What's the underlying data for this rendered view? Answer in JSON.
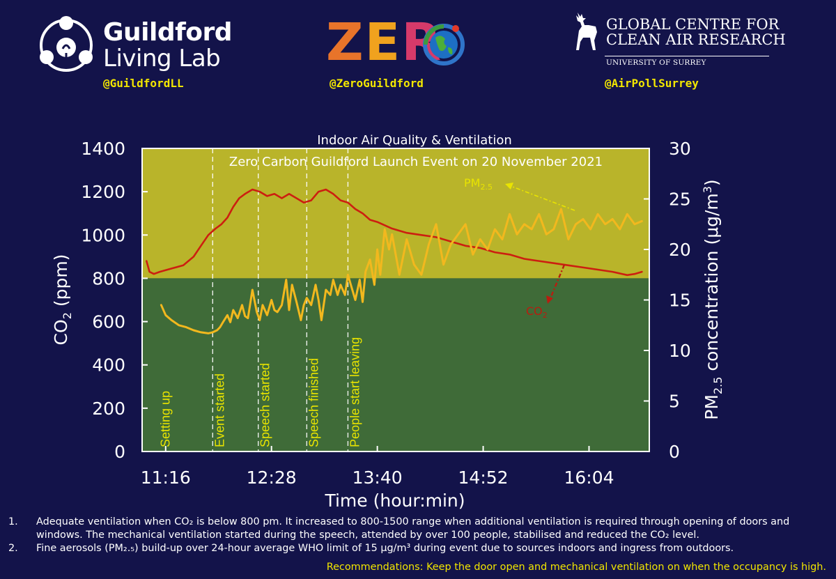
{
  "header": {
    "guildford": {
      "line1": "Guildford",
      "line2": "Living Lab",
      "handle": "@GuildfordLL"
    },
    "zero": {
      "letters": [
        "Z",
        "E",
        "R"
      ],
      "colors": [
        "#e8742a",
        "#f0a21e",
        "#d63a6a"
      ],
      "handle": "@ZeroGuildford"
    },
    "gccar": {
      "line1": "GLOBAL CENTRE FOR",
      "line2": "CLEAN AIR RESEARCH",
      "sub": "UNIVERSITY OF SURREY",
      "handle": "@AirPollSurrey"
    }
  },
  "chart_data": {
    "type": "line",
    "title": "Indoor Air Quality & Ventilation",
    "subtitle": "Zero Carbon Guildford Launch Event on 20 November 2021",
    "xlabel": "Time (hour:min)",
    "ylabel": "CO2 (ppm)",
    "y2label": "PM2.5 concentration (μg/m3)",
    "xlim_minutes": [
      660,
      1005
    ],
    "x_ticks": [
      "11:16",
      "12:28",
      "13:40",
      "14:52",
      "16:04"
    ],
    "x_tick_minutes": [
      676,
      748,
      820,
      892,
      964
    ],
    "ylim": [
      0,
      1400
    ],
    "y_ticks": [
      0,
      200,
      400,
      600,
      800,
      1000,
      1200,
      1400
    ],
    "y2lim": [
      0,
      30
    ],
    "y2_ticks": [
      0,
      5,
      10,
      15,
      20,
      25,
      30
    ],
    "threshold_ppm": 800,
    "background": {
      "above_threshold": "#b9b42a",
      "below_threshold": "#3f6b38"
    },
    "events": [
      {
        "label": "Setting up",
        "minute": 673,
        "line": false
      },
      {
        "label": "Event started",
        "minute": 708
      },
      {
        "label": "Speech started",
        "minute": 739
      },
      {
        "label": "Speech finished",
        "minute": 772
      },
      {
        "label": "People start leaving",
        "minute": 800
      }
    ],
    "series": [
      {
        "name": "CO2",
        "axis": "left",
        "color": "#cc1f10",
        "x": [
          663,
          665,
          668,
          672,
          680,
          688,
          695,
          700,
          705,
          710,
          714,
          718,
          722,
          726,
          730,
          735,
          740,
          745,
          750,
          755,
          760,
          765,
          770,
          775,
          780,
          785,
          790,
          795,
          800,
          805,
          810,
          815,
          820,
          830,
          840,
          850,
          860,
          870,
          880,
          890,
          900,
          910,
          920,
          930,
          940,
          950,
          960,
          970,
          980,
          990,
          995,
          1000
        ],
        "y": [
          880,
          830,
          820,
          830,
          845,
          860,
          900,
          950,
          1000,
          1030,
          1050,
          1080,
          1130,
          1170,
          1190,
          1210,
          1200,
          1180,
          1190,
          1170,
          1190,
          1170,
          1150,
          1160,
          1200,
          1210,
          1190,
          1160,
          1150,
          1120,
          1100,
          1070,
          1060,
          1030,
          1010,
          1000,
          990,
          970,
          950,
          940,
          920,
          910,
          890,
          880,
          870,
          860,
          850,
          840,
          830,
          815,
          820,
          830
        ]
      },
      {
        "name": "PM2.5",
        "axis": "right",
        "color": "#f2b81e",
        "x": [
          673,
          676,
          680,
          685,
          690,
          695,
          700,
          705,
          708,
          711,
          713,
          715,
          718,
          720,
          722,
          725,
          728,
          730,
          732,
          735,
          738,
          740,
          742,
          745,
          748,
          750,
          752,
          755,
          758,
          760,
          762,
          765,
          768,
          770,
          772,
          775,
          778,
          780,
          782,
          785,
          788,
          790,
          793,
          795,
          798,
          800,
          802,
          805,
          808,
          810,
          812,
          815,
          818,
          820,
          822,
          825,
          828,
          830,
          835,
          840,
          845,
          850,
          855,
          860,
          865,
          870,
          875,
          880,
          885,
          890,
          895,
          900,
          905,
          910,
          915,
          920,
          925,
          930,
          935,
          940,
          945,
          950,
          955,
          960,
          965,
          970,
          975,
          980,
          985,
          990,
          995,
          1000
        ],
        "y": [
          14.5,
          13.5,
          13.0,
          12.5,
          12.3,
          12.0,
          11.8,
          11.7,
          11.8,
          12.0,
          12.3,
          12.8,
          13.5,
          12.8,
          14.0,
          13.2,
          14.5,
          13.4,
          13.2,
          16.0,
          13.8,
          13.0,
          14.5,
          13.5,
          15.0,
          14.0,
          13.8,
          14.5,
          17.0,
          14.0,
          16.5,
          14.8,
          13.0,
          14.5,
          15.2,
          14.5,
          16.5,
          15.0,
          13.0,
          16.0,
          15.5,
          17.0,
          15.5,
          16.5,
          15.5,
          17.5,
          16.5,
          15.0,
          17.0,
          14.8,
          17.8,
          19.0,
          16.5,
          20.0,
          17.5,
          22.0,
          20.0,
          21.5,
          17.5,
          21.0,
          18.5,
          17.5,
          20.5,
          22.5,
          18.5,
          20.5,
          21.5,
          22.5,
          19.5,
          21.0,
          20.0,
          22.0,
          21.0,
          23.5,
          21.5,
          22.5,
          22.0,
          23.5,
          21.5,
          22.0,
          24.0,
          21.0,
          22.5,
          23.0,
          22.0,
          23.5,
          22.5,
          23.0,
          22.0,
          23.5,
          22.5,
          22.8
        ]
      }
    ],
    "annotations": [
      {
        "text": "PM2.5",
        "series": "PM2.5"
      },
      {
        "text": "CO2",
        "series": "CO2"
      }
    ]
  },
  "notes": [
    {
      "num": "1.",
      "text": "Adequate ventilation when CO₂ is below 800 pm. It increased to 800-1500 range when additional ventilation is required through opening of doors and windows. The mechanical ventilation started during the speech, attended by over 100 people, stabilised and reduced the CO₂ level."
    },
    {
      "num": "2.",
      "text": "Fine aerosols (PM₂.₅) build-up over 24-hour average WHO limit of 15 μg/m³ during event due to sources indoors and ingress from outdoors."
    }
  ],
  "recommendation": "Recommendations: Keep the door open and mechanical ventilation on when the occupancy is high."
}
